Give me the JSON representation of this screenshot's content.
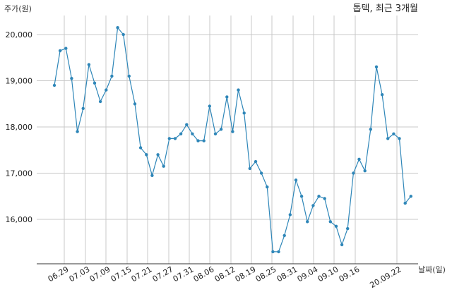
{
  "chart_data": {
    "type": "line",
    "title": "톱텍, 최근 3개월",
    "xlabel": "날짜(일)",
    "ylabel": "주가(원)",
    "x_tick_labels": [
      "06.29",
      "07.03",
      "07.09",
      "07.15",
      "07.21",
      "07.27",
      "07.31",
      "08.06",
      "08.12",
      "08.19",
      "08.25",
      "08.31",
      "09.04",
      "09.10",
      "09.16",
      "20.09.22"
    ],
    "y_tick_labels": [
      "16,000",
      "17,000",
      "18,000",
      "19,000",
      "20,000"
    ],
    "y_ticks": [
      16000,
      17000,
      18000,
      19000,
      20000
    ],
    "ylim": [
      14000,
      20600
    ],
    "grid": true,
    "color": "#2e86b8",
    "series": [
      {
        "values": [
          18900,
          19650,
          19700,
          19050,
          17900,
          18400,
          19350,
          18950,
          18550,
          18800,
          19100,
          20150,
          20000,
          19100,
          18500,
          17550,
          17400,
          16950,
          17400,
          17150,
          17750,
          17750,
          17850,
          18050,
          17850,
          17700,
          17700,
          18450,
          17850,
          17950,
          18650,
          17900,
          18800,
          18300,
          17100,
          17250,
          17000,
          16700,
          15300,
          15300,
          15650,
          16100,
          16850,
          16500,
          15950,
          16300,
          16500,
          16450,
          15950,
          15850,
          15450,
          15800,
          17000,
          17300,
          17050,
          17950,
          19300,
          18700,
          17750,
          17850,
          17750,
          16350,
          16500
        ]
      }
    ]
  }
}
